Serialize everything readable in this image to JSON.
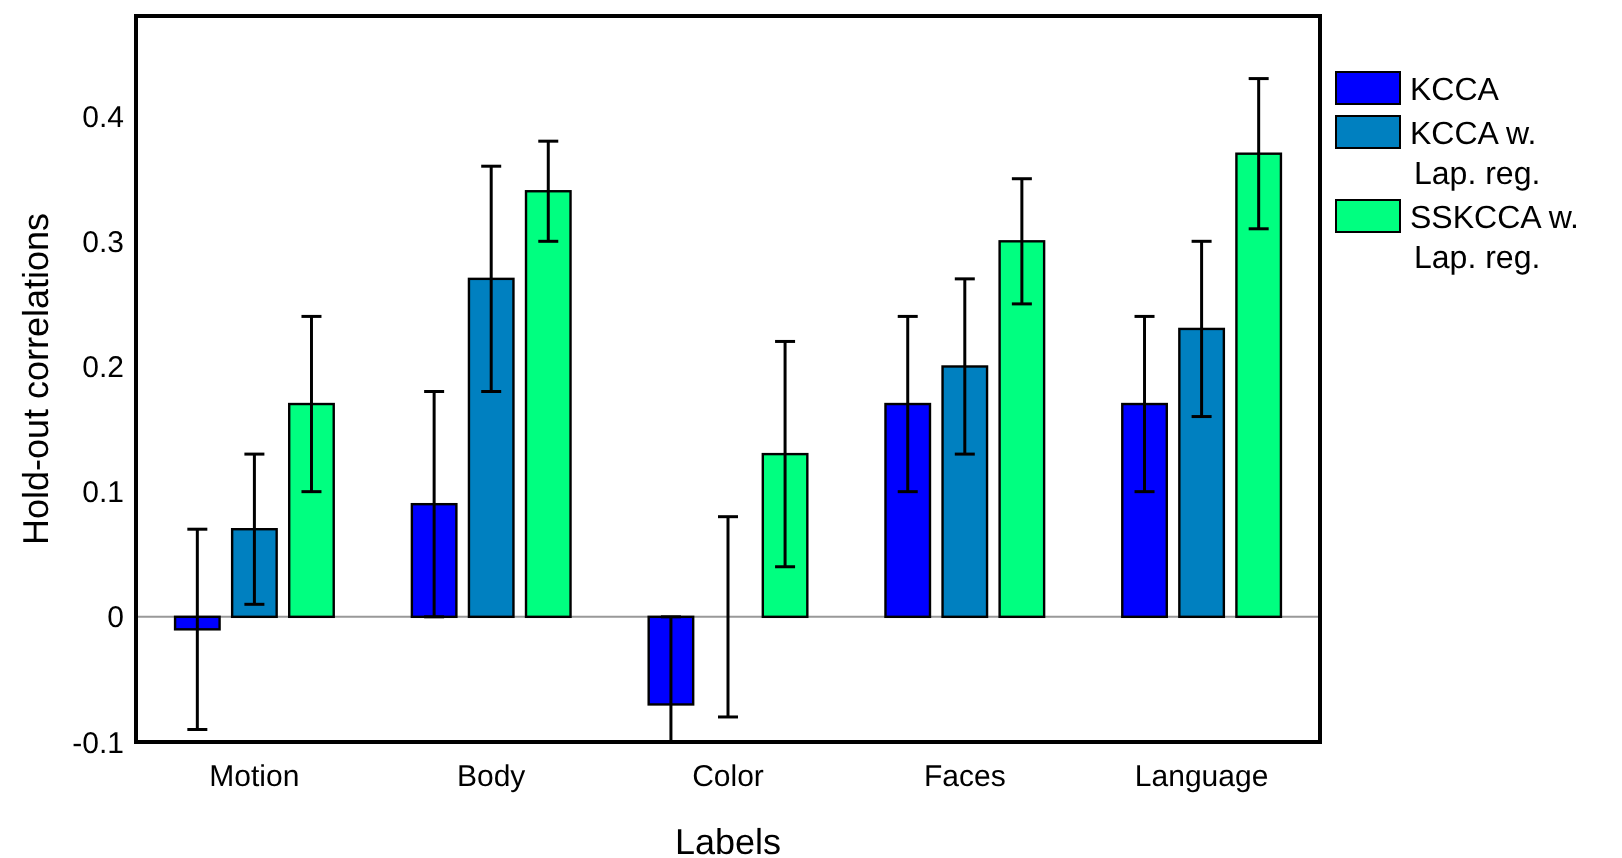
{
  "chart_data": {
    "type": "bar",
    "xlabel": "Labels",
    "ylabel": "Hold-out correlations",
    "categories": [
      "Motion",
      "Body",
      "Color",
      "Faces",
      "Language"
    ],
    "series": [
      {
        "name": "KCCA",
        "color": "#0000ff",
        "values": [
          -0.01,
          0.09,
          -0.07,
          0.17,
          0.17
        ],
        "errors": [
          [
            -0.09,
            0.07
          ],
          [
            0,
            0.18
          ],
          [
            -0.1,
            0
          ],
          [
            0.1,
            0.24
          ],
          [
            0.1,
            0.24
          ]
        ]
      },
      {
        "name": "KCCA w. Lap. reg.",
        "color": "#0080c0",
        "values": [
          0.07,
          0.27,
          0,
          0.2,
          0.23
        ],
        "errors": [
          [
            0.01,
            0.13
          ],
          [
            0.18,
            0.36
          ],
          [
            -0.08,
            0.08
          ],
          [
            0.13,
            0.27
          ],
          [
            0.16,
            0.3
          ]
        ]
      },
      {
        "name": "SSKCCA w. Lap. reg.",
        "color": "#00ff80",
        "values": [
          0.17,
          0.34,
          0.13,
          0.3,
          0.37
        ],
        "errors": [
          [
            0.1,
            0.24
          ],
          [
            0.3,
            0.38
          ],
          [
            0.04,
            0.22
          ],
          [
            0.25,
            0.35
          ],
          [
            0.31,
            0.43
          ]
        ]
      }
    ],
    "ylim": [
      -0.1,
      0.48
    ],
    "yticks": [
      -0.1,
      0,
      0.1,
      0.2,
      0.3,
      0.4
    ],
    "ref_lines": [
      {
        "axis": "y",
        "value": 0,
        "color": "#999999"
      }
    ],
    "legend": "right",
    "grid": false
  }
}
